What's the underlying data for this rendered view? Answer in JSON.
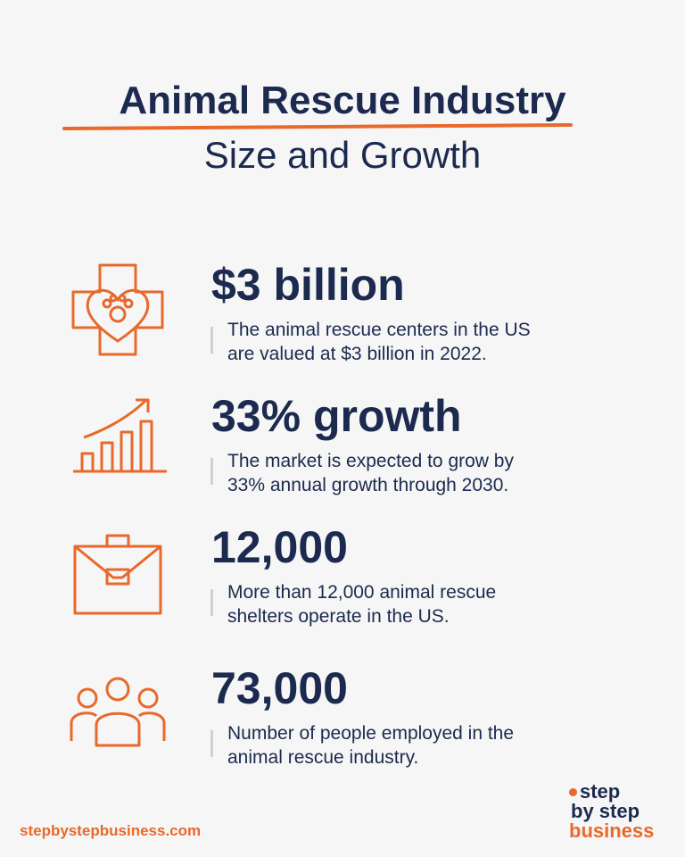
{
  "header": {
    "title": "Animal Rescue Industry",
    "subtitle": "Size and Growth"
  },
  "stats": [
    {
      "headline": "$3 billion",
      "lines": [
        "The animal rescue centers in the US",
        "are valued at $3 billion in 2022."
      ]
    },
    {
      "headline": "33% growth",
      "lines": [
        "The market is expected to grow by",
        "33% annual growth through 2030."
      ]
    },
    {
      "headline": "12,000",
      "lines": [
        "More than 12,000 animal rescue",
        "shelters operate in the US."
      ]
    },
    {
      "headline": "73,000",
      "lines": [
        "Number of people employed in the",
        "animal rescue industry."
      ]
    }
  ],
  "footer": {
    "url": "stepbystepbusiness.com",
    "logo": [
      "step",
      "by step",
      "business"
    ]
  }
}
